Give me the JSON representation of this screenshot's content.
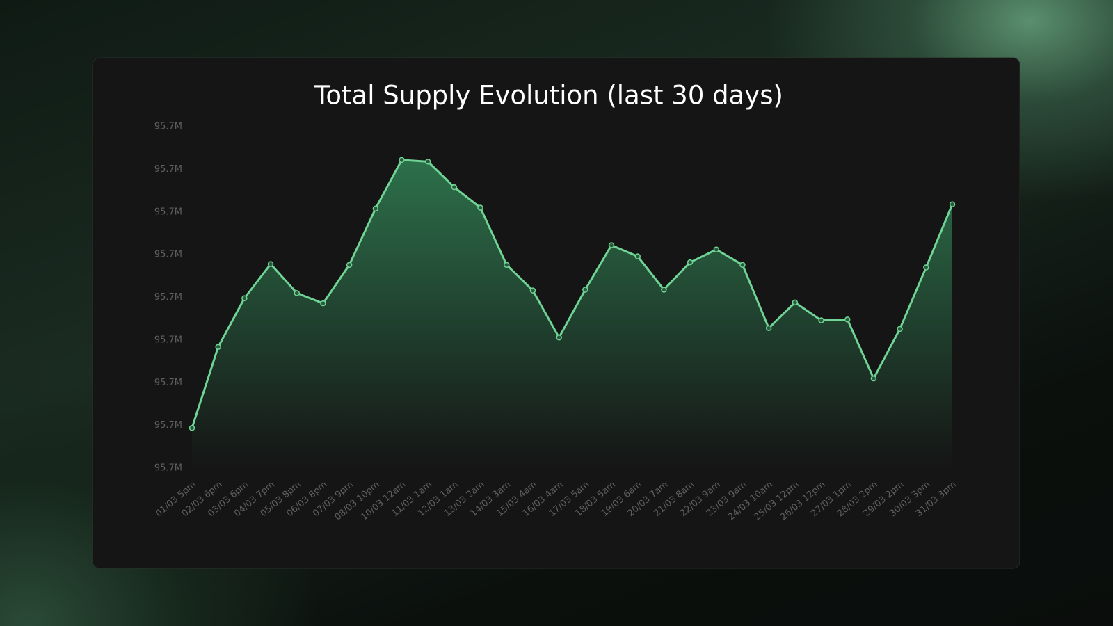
{
  "chart_data": {
    "type": "line",
    "area": true,
    "title": "Total Supply Evolution (last 30 days)",
    "categories": [
      "01/03 5pm",
      "02/03 6pm",
      "03/03 6pm",
      "04/03 7pm",
      "05/03 8pm",
      "06/03 8pm",
      "07/03 9pm",
      "08/03 10pm",
      "10/03 12am",
      "11/03 1am",
      "12/03 1am",
      "13/03 2am",
      "14/03 3am",
      "15/03 4am",
      "16/03 4am",
      "17/03 5am",
      "18/03 5am",
      "19/03 6am",
      "20/03 7am",
      "21/03 8am",
      "22/03 9am",
      "23/03 9am",
      "24/03 10am",
      "25/03 12pm",
      "26/03 12pm",
      "27/03 1pm",
      "28/03 2pm",
      "29/03 2pm",
      "30/03 3pm",
      "31/03 3pm"
    ],
    "values": [
      95684700,
      95694200,
      95699900,
      95703900,
      95700500,
      95699300,
      95703800,
      95710400,
      95716100,
      95715900,
      95712900,
      95710500,
      95703800,
      95700800,
      95695300,
      95700900,
      95706100,
      95704800,
      95700900,
      95704100,
      95705600,
      95703800,
      95696400,
      95699400,
      95697300,
      95697400,
      95690500,
      95696300,
      95703500,
      95710900
    ],
    "color": "#6fd495",
    "ylim": [
      95680000,
      95720000
    ],
    "yticks": [
      {
        "value": 95680000,
        "label": "95.7M"
      },
      {
        "value": 95685000,
        "label": "95.7M"
      },
      {
        "value": 95690000,
        "label": "95.7M"
      },
      {
        "value": 95695000,
        "label": "95.7M"
      },
      {
        "value": 95700000,
        "label": "95.7M"
      },
      {
        "value": 95705000,
        "label": "95.7M"
      },
      {
        "value": 95710000,
        "label": "95.7M"
      },
      {
        "value": 95715000,
        "label": "95.7M"
      },
      {
        "value": 95720000,
        "label": "95.7M"
      }
    ],
    "grid": false
  }
}
